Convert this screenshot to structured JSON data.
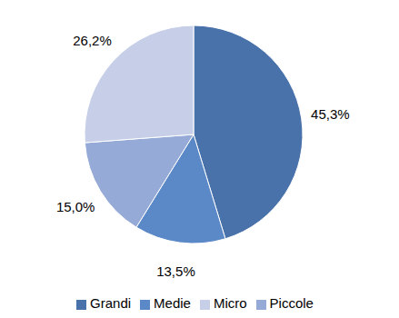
{
  "chart_data": {
    "type": "pie",
    "categories": [
      "Grandi",
      "Medie",
      "Piccole",
      "Micro"
    ],
    "values": [
      45.3,
      13.5,
      15.0,
      26.2
    ],
    "value_labels": [
      "45,3%",
      "13,5%",
      "15,0%",
      "26,2%"
    ],
    "colors": [
      "#4a72aa",
      "#5b88c6",
      "#95aad6",
      "#c6cfe7"
    ],
    "data_labels": true,
    "legend": "bottom"
  }
}
